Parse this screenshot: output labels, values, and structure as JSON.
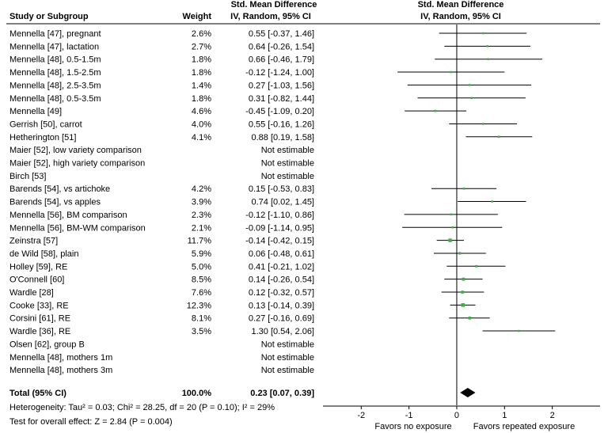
{
  "headers": {
    "study": "Study or Subgroup",
    "weight": "Weight",
    "smd_title": "Std. Mean Difference",
    "smd_sub": "IV, Random, 95% CI",
    "plot_title": "Std. Mean Difference",
    "plot_sub": "IV, Random, 95% CI"
  },
  "chart_data": {
    "type": "forest",
    "xlim": [
      -2.8,
      3.0
    ],
    "ticks": [
      -2,
      -1,
      0,
      1,
      2
    ],
    "tick_labels": [
      "-2",
      "-1",
      "0",
      "1",
      "2"
    ],
    "xlabel_left": "Favors no exposure",
    "xlabel_right": "Favors repeated exposure",
    "studies": [
      {
        "name": "Mennella [47], pregnant",
        "weight": "2.6%",
        "ci_text": "0.55 [-0.37, 1.46]",
        "est": 0.55,
        "lo": -0.37,
        "hi": 1.46,
        "w": 2.6
      },
      {
        "name": "Mennella [47], lactation",
        "weight": "2.7%",
        "ci_text": "0.64 [-0.26, 1.54]",
        "est": 0.64,
        "lo": -0.26,
        "hi": 1.54,
        "w": 2.7
      },
      {
        "name": "Mennella [48], 0.5-1.5m",
        "weight": "1.8%",
        "ci_text": "0.66 [-0.46, 1.79]",
        "est": 0.66,
        "lo": -0.46,
        "hi": 1.79,
        "w": 1.8
      },
      {
        "name": "Mennella [48], 1.5-2.5m",
        "weight": "1.8%",
        "ci_text": "-0.12 [-1.24, 1.00]",
        "est": -0.12,
        "lo": -1.24,
        "hi": 1.0,
        "w": 1.8
      },
      {
        "name": "Mennella [48], 2.5-3.5m",
        "weight": "1.4%",
        "ci_text": "0.27 [-1.03, 1.56]",
        "est": 0.27,
        "lo": -1.03,
        "hi": 1.56,
        "w": 1.4
      },
      {
        "name": "Mennella [48], 0.5-3.5m",
        "weight": "1.8%",
        "ci_text": "0.31 [-0.82, 1.44]",
        "est": 0.31,
        "lo": -0.82,
        "hi": 1.44,
        "w": 1.8
      },
      {
        "name": "Mennella [49]",
        "weight": "4.6%",
        "ci_text": "-0.45 [-1.09, 0.20]",
        "est": -0.45,
        "lo": -1.09,
        "hi": 0.2,
        "w": 4.6
      },
      {
        "name": "Gerrish [50], carrot",
        "weight": "4.0%",
        "ci_text": "0.55 [-0.16, 1.26]",
        "est": 0.55,
        "lo": -0.16,
        "hi": 1.26,
        "w": 4.0
      },
      {
        "name": "Hetherington [51]",
        "weight": "4.1%",
        "ci_text": "0.88 [0.19, 1.58]",
        "est": 0.88,
        "lo": 0.19,
        "hi": 1.58,
        "w": 4.1
      },
      {
        "name": "Maier [52], low variety comparison",
        "weight": "",
        "ci_text": "Not estimable",
        "est": null,
        "lo": null,
        "hi": null,
        "w": null
      },
      {
        "name": "Maier [52], high variety comparison",
        "weight": "",
        "ci_text": "Not estimable",
        "est": null,
        "lo": null,
        "hi": null,
        "w": null
      },
      {
        "name": "Birch [53]",
        "weight": "",
        "ci_text": "Not estimable",
        "est": null,
        "lo": null,
        "hi": null,
        "w": null
      },
      {
        "name": "Barends [54], vs artichoke",
        "weight": "4.2%",
        "ci_text": "0.15 [-0.53, 0.83]",
        "est": 0.15,
        "lo": -0.53,
        "hi": 0.83,
        "w": 4.2
      },
      {
        "name": "Barends [54], vs apples",
        "weight": "3.9%",
        "ci_text": "0.74 [0.02, 1.45]",
        "est": 0.74,
        "lo": 0.02,
        "hi": 1.45,
        "w": 3.9
      },
      {
        "name": "Mennella [56], BM comparison",
        "weight": "2.3%",
        "ci_text": "-0.12 [-1.10, 0.86]",
        "est": -0.12,
        "lo": -1.1,
        "hi": 0.86,
        "w": 2.3
      },
      {
        "name": "Mennella [56], BM-WM comparison",
        "weight": "2.1%",
        "ci_text": "-0.09 [-1.14, 0.95]",
        "est": -0.09,
        "lo": -1.14,
        "hi": 0.95,
        "w": 2.1
      },
      {
        "name": "Zeinstra [57]",
        "weight": "11.7%",
        "ci_text": "-0.14 [-0.42, 0.15]",
        "est": -0.14,
        "lo": -0.42,
        "hi": 0.15,
        "w": 11.7
      },
      {
        "name": "de Wild [58], plain",
        "weight": "5.9%",
        "ci_text": "0.06 [-0.48, 0.61]",
        "est": 0.06,
        "lo": -0.48,
        "hi": 0.61,
        "w": 5.9
      },
      {
        "name": "Holley [59], RE",
        "weight": "5.0%",
        "ci_text": "0.41 [-0.21, 1.02]",
        "est": 0.41,
        "lo": -0.21,
        "hi": 1.02,
        "w": 5.0
      },
      {
        "name": "O'Connell [60]",
        "weight": "8.5%",
        "ci_text": "0.14 [-0.26, 0.54]",
        "est": 0.14,
        "lo": -0.26,
        "hi": 0.54,
        "w": 8.5
      },
      {
        "name": "Wardle [28]",
        "weight": "7.6%",
        "ci_text": "0.12 [-0.32, 0.57]",
        "est": 0.12,
        "lo": -0.32,
        "hi": 0.57,
        "w": 7.6
      },
      {
        "name": "Cooke [33], RE",
        "weight": "12.3%",
        "ci_text": "0.13 [-0.14, 0.39]",
        "est": 0.13,
        "lo": -0.14,
        "hi": 0.39,
        "w": 12.3
      },
      {
        "name": "Corsini [61], RE",
        "weight": "8.1%",
        "ci_text": "0.27 [-0.16, 0.69]",
        "est": 0.27,
        "lo": -0.16,
        "hi": 0.69,
        "w": 8.1
      },
      {
        "name": "Wardle [36], RE",
        "weight": "3.5%",
        "ci_text": "1.30 [0.54, 2.06]",
        "est": 1.3,
        "lo": 0.54,
        "hi": 2.06,
        "w": 3.5
      },
      {
        "name": "Olsen [62], group B",
        "weight": "",
        "ci_text": "Not estimable",
        "est": null,
        "lo": null,
        "hi": null,
        "w": null
      },
      {
        "name": "Mennella [48], mothers 1m",
        "weight": "",
        "ci_text": "Not estimable",
        "est": null,
        "lo": null,
        "hi": null,
        "w": null
      },
      {
        "name": "Mennella [48], mothers 3m",
        "weight": "",
        "ci_text": "Not estimable",
        "est": null,
        "lo": null,
        "hi": null,
        "w": null
      }
    ],
    "total": {
      "name": "Total (95% CI)",
      "weight": "100.0%",
      "ci_text": "0.23 [0.07, 0.39]",
      "est": 0.23,
      "lo": 0.07,
      "hi": 0.39
    },
    "heterogeneity": "Heterogeneity: Tau² = 0.03; Chi² = 28.25, df = 20 (P = 0.10); I² = 29%",
    "overall_effect": "Test for overall effect: Z = 2.84 (P = 0.004)",
    "colors": {
      "marker": "#3cb043",
      "line": "#000000",
      "diamond": "#000000"
    }
  }
}
